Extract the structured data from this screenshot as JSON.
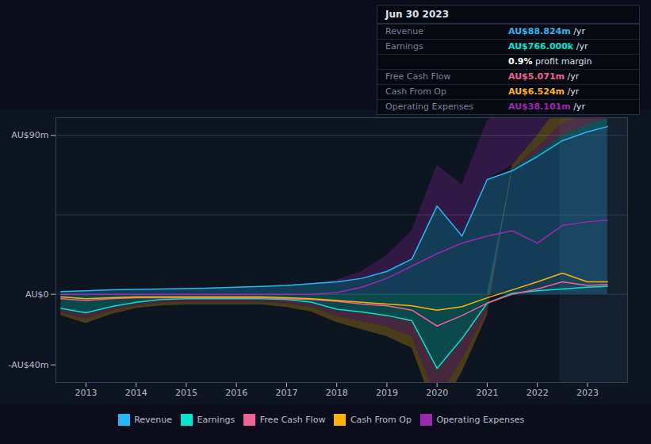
{
  "chart_data": {
    "type": "area",
    "x": [
      2012.5,
      2013,
      2013.5,
      2014,
      2014.5,
      2015,
      2015.5,
      2016,
      2016.5,
      2017,
      2017.5,
      2018,
      2018.5,
      2019,
      2019.5,
      2020,
      2020.5,
      2021,
      2021.5,
      2022,
      2022.5,
      2023,
      2023.4
    ],
    "series": [
      {
        "name": "Revenue",
        "color": "#29b6f6",
        "values": [
          1.5,
          2.0,
          2.5,
          2.8,
          3.0,
          3.2,
          3.5,
          4.0,
          4.5,
          5.0,
          6.0,
          7.0,
          9.0,
          13.0,
          20.0,
          50.0,
          33.0,
          65.0,
          70.0,
          78.0,
          87.0,
          92.0,
          95.0
        ]
      },
      {
        "name": "Earnings",
        "color": "#00e5cc",
        "values": [
          -8.0,
          -10.5,
          -7.0,
          -4.5,
          -3.0,
          -2.5,
          -2.5,
          -2.5,
          -2.5,
          -3.0,
          -4.5,
          -8.5,
          -10.0,
          -12.0,
          -15.0,
          -42.0,
          -25.0,
          -5.0,
          0.5,
          2.0,
          3.0,
          4.0,
          4.5
        ]
      },
      {
        "name": "Free Cash Flow",
        "color": "#f06292",
        "values": [
          -2.5,
          -3.5,
          -2.5,
          -2.0,
          -2.0,
          -2.0,
          -2.0,
          -2.0,
          -2.0,
          -2.5,
          -3.0,
          -4.0,
          -5.5,
          -6.5,
          -9.0,
          -18.0,
          -12.0,
          -5.0,
          0.0,
          3.0,
          7.0,
          5.0,
          5.5
        ]
      },
      {
        "name": "Cash From Op",
        "color": "#ffb300",
        "values": [
          -1.5,
          -2.5,
          -2.0,
          -1.5,
          -1.5,
          -1.5,
          -1.5,
          -1.5,
          -1.5,
          -2.0,
          -2.5,
          -3.5,
          -4.5,
          -5.5,
          -6.5,
          -9.0,
          -7.0,
          -2.0,
          2.5,
          7.0,
          12.0,
          7.0,
          7.0
        ]
      },
      {
        "name": "Operating Expenses",
        "color": "#9c27b0",
        "values": [
          0.0,
          0.0,
          0.0,
          0.0,
          0.0,
          0.0,
          0.0,
          0.0,
          0.0,
          0.0,
          0.0,
          1.0,
          4.0,
          9.0,
          16.0,
          23.0,
          29.0,
          33.0,
          36.0,
          29.0,
          39.0,
          41.0,
          42.0
        ]
      }
    ],
    "xlim": [
      2012.4,
      2023.8
    ],
    "ylim": [
      -50,
      100
    ],
    "xticks": [
      2013,
      2014,
      2015,
      2016,
      2017,
      2018,
      2019,
      2020,
      2021,
      2022,
      2023
    ],
    "yticks": [
      {
        "value": 90,
        "label": "AU$90m"
      },
      {
        "value": 0,
        "label": "AU$0"
      },
      {
        "value": -40,
        "label": "-AU$40m"
      }
    ],
    "hlines": [
      0,
      45,
      90
    ],
    "shaded_from": 2022.45,
    "legend": "bottom",
    "info_box": {
      "title": "Jun 30 2023",
      "rows": [
        {
          "label": "Revenue",
          "value": "AU$88.824m",
          "suffix": " /yr",
          "color": "#29b6f6"
        },
        {
          "label": "Earnings",
          "value": "AU$766.000k",
          "suffix": " /yr",
          "color": "#00e5cc"
        },
        {
          "value": "0.9%",
          "suffix": " profit margin",
          "color": "#ffffff"
        },
        {
          "label": "Free Cash Flow",
          "value": "AU$5.071m",
          "suffix": " /yr",
          "color": "#f06292"
        },
        {
          "label": "Cash From Op",
          "value": "AU$6.524m",
          "suffix": " /yr",
          "color": "#ffb300"
        },
        {
          "label": "Operating Expenses",
          "value": "AU$38.101m",
          "suffix": " /yr",
          "color": "#9c27b0"
        }
      ]
    }
  }
}
